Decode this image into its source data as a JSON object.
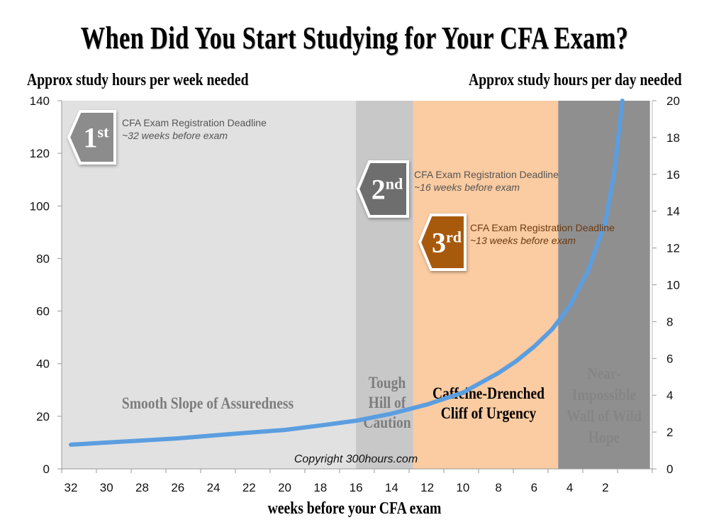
{
  "title": "When Did You Start Studying for Your CFA Exam?",
  "y_left_label": "Approx study hours per week needed",
  "y_right_label": "Approx study hours per day needed",
  "x_label": "weeks before your CFA exam",
  "copyright": "Copyright 300hours.com",
  "colors": {
    "curve": "#5b9ee0",
    "region_smooth": "#e1e1e1",
    "region_tough": "#c8c8c8",
    "region_cliff": "#fbcba1",
    "region_wall": "#8f8f8f",
    "badge_1st": "#8c8c8c",
    "badge_2nd": "#6e6e6e",
    "badge_3rd": "#a85a0c",
    "note_gray": "#555555",
    "note_brown": "#6b3a12"
  },
  "regions": [
    {
      "name": "Smooth Slope of Assuredness",
      "lines": [
        "Smooth Slope of Assuredness"
      ],
      "from_week": 33.5,
      "to_week": 16,
      "color": "#e1e1e1",
      "label_color": "#7d7d7d"
    },
    {
      "name": "Tough Hill of Caution",
      "lines": [
        "Tough",
        "Hill of",
        "Caution"
      ],
      "from_week": 16,
      "to_week": 12.8,
      "color": "#c8c8c8",
      "label_color": "#7d7d7d"
    },
    {
      "name": "Caffeine-Drenched Cliff of Urgency",
      "lines": [
        "Caffeine-Drenched",
        "Cliff of Urgency"
      ],
      "from_week": 12.8,
      "to_week": 4.65,
      "color": "#fbcba1",
      "label_color": "#000000"
    },
    {
      "name": "Near-Impossible Wall of Wild Hope",
      "lines": [
        "Near-",
        "Impossible",
        "Wall of Wild",
        "Hope"
      ],
      "from_week": 4.65,
      "to_week": -0.5,
      "color": "#8f8f8f",
      "label_color": "#858585"
    }
  ],
  "deadlines": [
    {
      "badge": "1st",
      "num": "1",
      "suffix": "st",
      "line1": "CFA Exam Registration Deadline",
      "line2": "~32 weeks before exam"
    },
    {
      "badge": "2nd",
      "num": "2",
      "suffix": "nd",
      "line1": "CFA Exam Registration Deadline",
      "line2": "~16 weeks before exam"
    },
    {
      "badge": "3rd",
      "num": "3",
      "suffix": "rd",
      "line1": "CFA Exam Registration Deadline",
      "line2": "~13 weeks before exam"
    }
  ],
  "chart_data": {
    "type": "line",
    "title": "When Did You Start Studying for Your CFA Exam?",
    "xlabel": "weeks before your CFA exam",
    "ylabel": "Approx study hours per week needed",
    "y2label": "Approx study hours per day needed",
    "x_ticks": [
      32,
      30,
      28,
      26,
      24,
      22,
      20,
      18,
      16,
      14,
      12,
      10,
      8,
      6,
      4,
      2
    ],
    "x_reversed": true,
    "ylim": [
      0,
      140
    ],
    "y_ticks": [
      0,
      20,
      40,
      60,
      80,
      100,
      120,
      140
    ],
    "y2lim": [
      0,
      20
    ],
    "y2_ticks": [
      0,
      2,
      4,
      6,
      8,
      10,
      12,
      14,
      16,
      18,
      20
    ],
    "grid": false,
    "legend": null,
    "series": [
      {
        "name": "Study hours per week needed",
        "x": [
          32,
          30,
          28,
          26,
          24,
          22,
          20,
          18,
          16,
          14,
          12,
          10,
          8,
          7,
          6,
          5,
          4,
          3,
          2,
          1.5,
          1.05
        ],
        "values": [
          9.2,
          10,
          10.8,
          11.6,
          12.7,
          13.8,
          14.8,
          16.5,
          18.3,
          21,
          24.5,
          29,
          36.5,
          41,
          46.5,
          53,
          62,
          75,
          94,
          113,
          140
        ]
      }
    ],
    "annotations": [
      "1st CFA Exam Registration Deadline ~32 weeks before exam",
      "2nd CFA Exam Registration Deadline ~16 weeks before exam",
      "3rd CFA Exam Registration Deadline ~13 weeks before exam",
      "Smooth Slope of Assuredness",
      "Tough Hill of Caution",
      "Caffeine-Drenched Cliff of Urgency",
      "Near-Impossible Wall of Wild Hope",
      "Copyright 300hours.com"
    ]
  }
}
